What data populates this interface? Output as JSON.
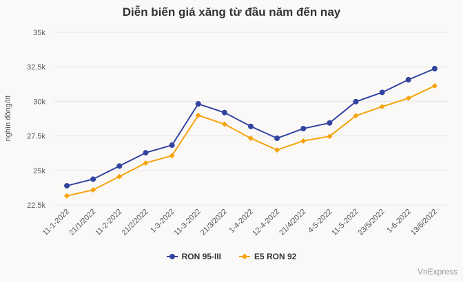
{
  "chart_data": {
    "type": "line",
    "title": "Diễn biến giá xăng từ đầu năm đến nay",
    "ylabel": "nghìn đồng/lít",
    "xlabel": "",
    "ylim": [
      22500,
      35000
    ],
    "y_ticks": [
      "22.5k",
      "25k",
      "27.5k",
      "30k",
      "32.5k",
      "35k"
    ],
    "y_tick_values": [
      22500,
      25000,
      27500,
      30000,
      32500,
      35000
    ],
    "categories": [
      "11-1-2022",
      "21/1/2022",
      "11-2-2022",
      "21/2/2022",
      "1-3-2022",
      "11-3-2022",
      "21/3/2022",
      "1-4-2022",
      "12-4-2022",
      "21/4/2022",
      "4-5-2022",
      "11-5-2022",
      "23/5/2022",
      "1-6-2022",
      "13/6/2022"
    ],
    "series": [
      {
        "name": "RON 95-III",
        "color": "#3344a0",
        "marker": "circle",
        "values": [
          23890,
          24370,
          25320,
          26280,
          26830,
          29820,
          29190,
          28190,
          27330,
          28030,
          28440,
          29980,
          30650,
          31570,
          32370
        ]
      },
      {
        "name": "E5 RON 92",
        "color": "#f5a30a",
        "marker": "diamond",
        "values": [
          23160,
          23590,
          24560,
          25540,
          26070,
          28990,
          28350,
          27330,
          26480,
          27140,
          27470,
          28960,
          29620,
          30230,
          31120
        ]
      }
    ],
    "grid": true,
    "legend_position": "bottom"
  },
  "credit": "VnExpress"
}
